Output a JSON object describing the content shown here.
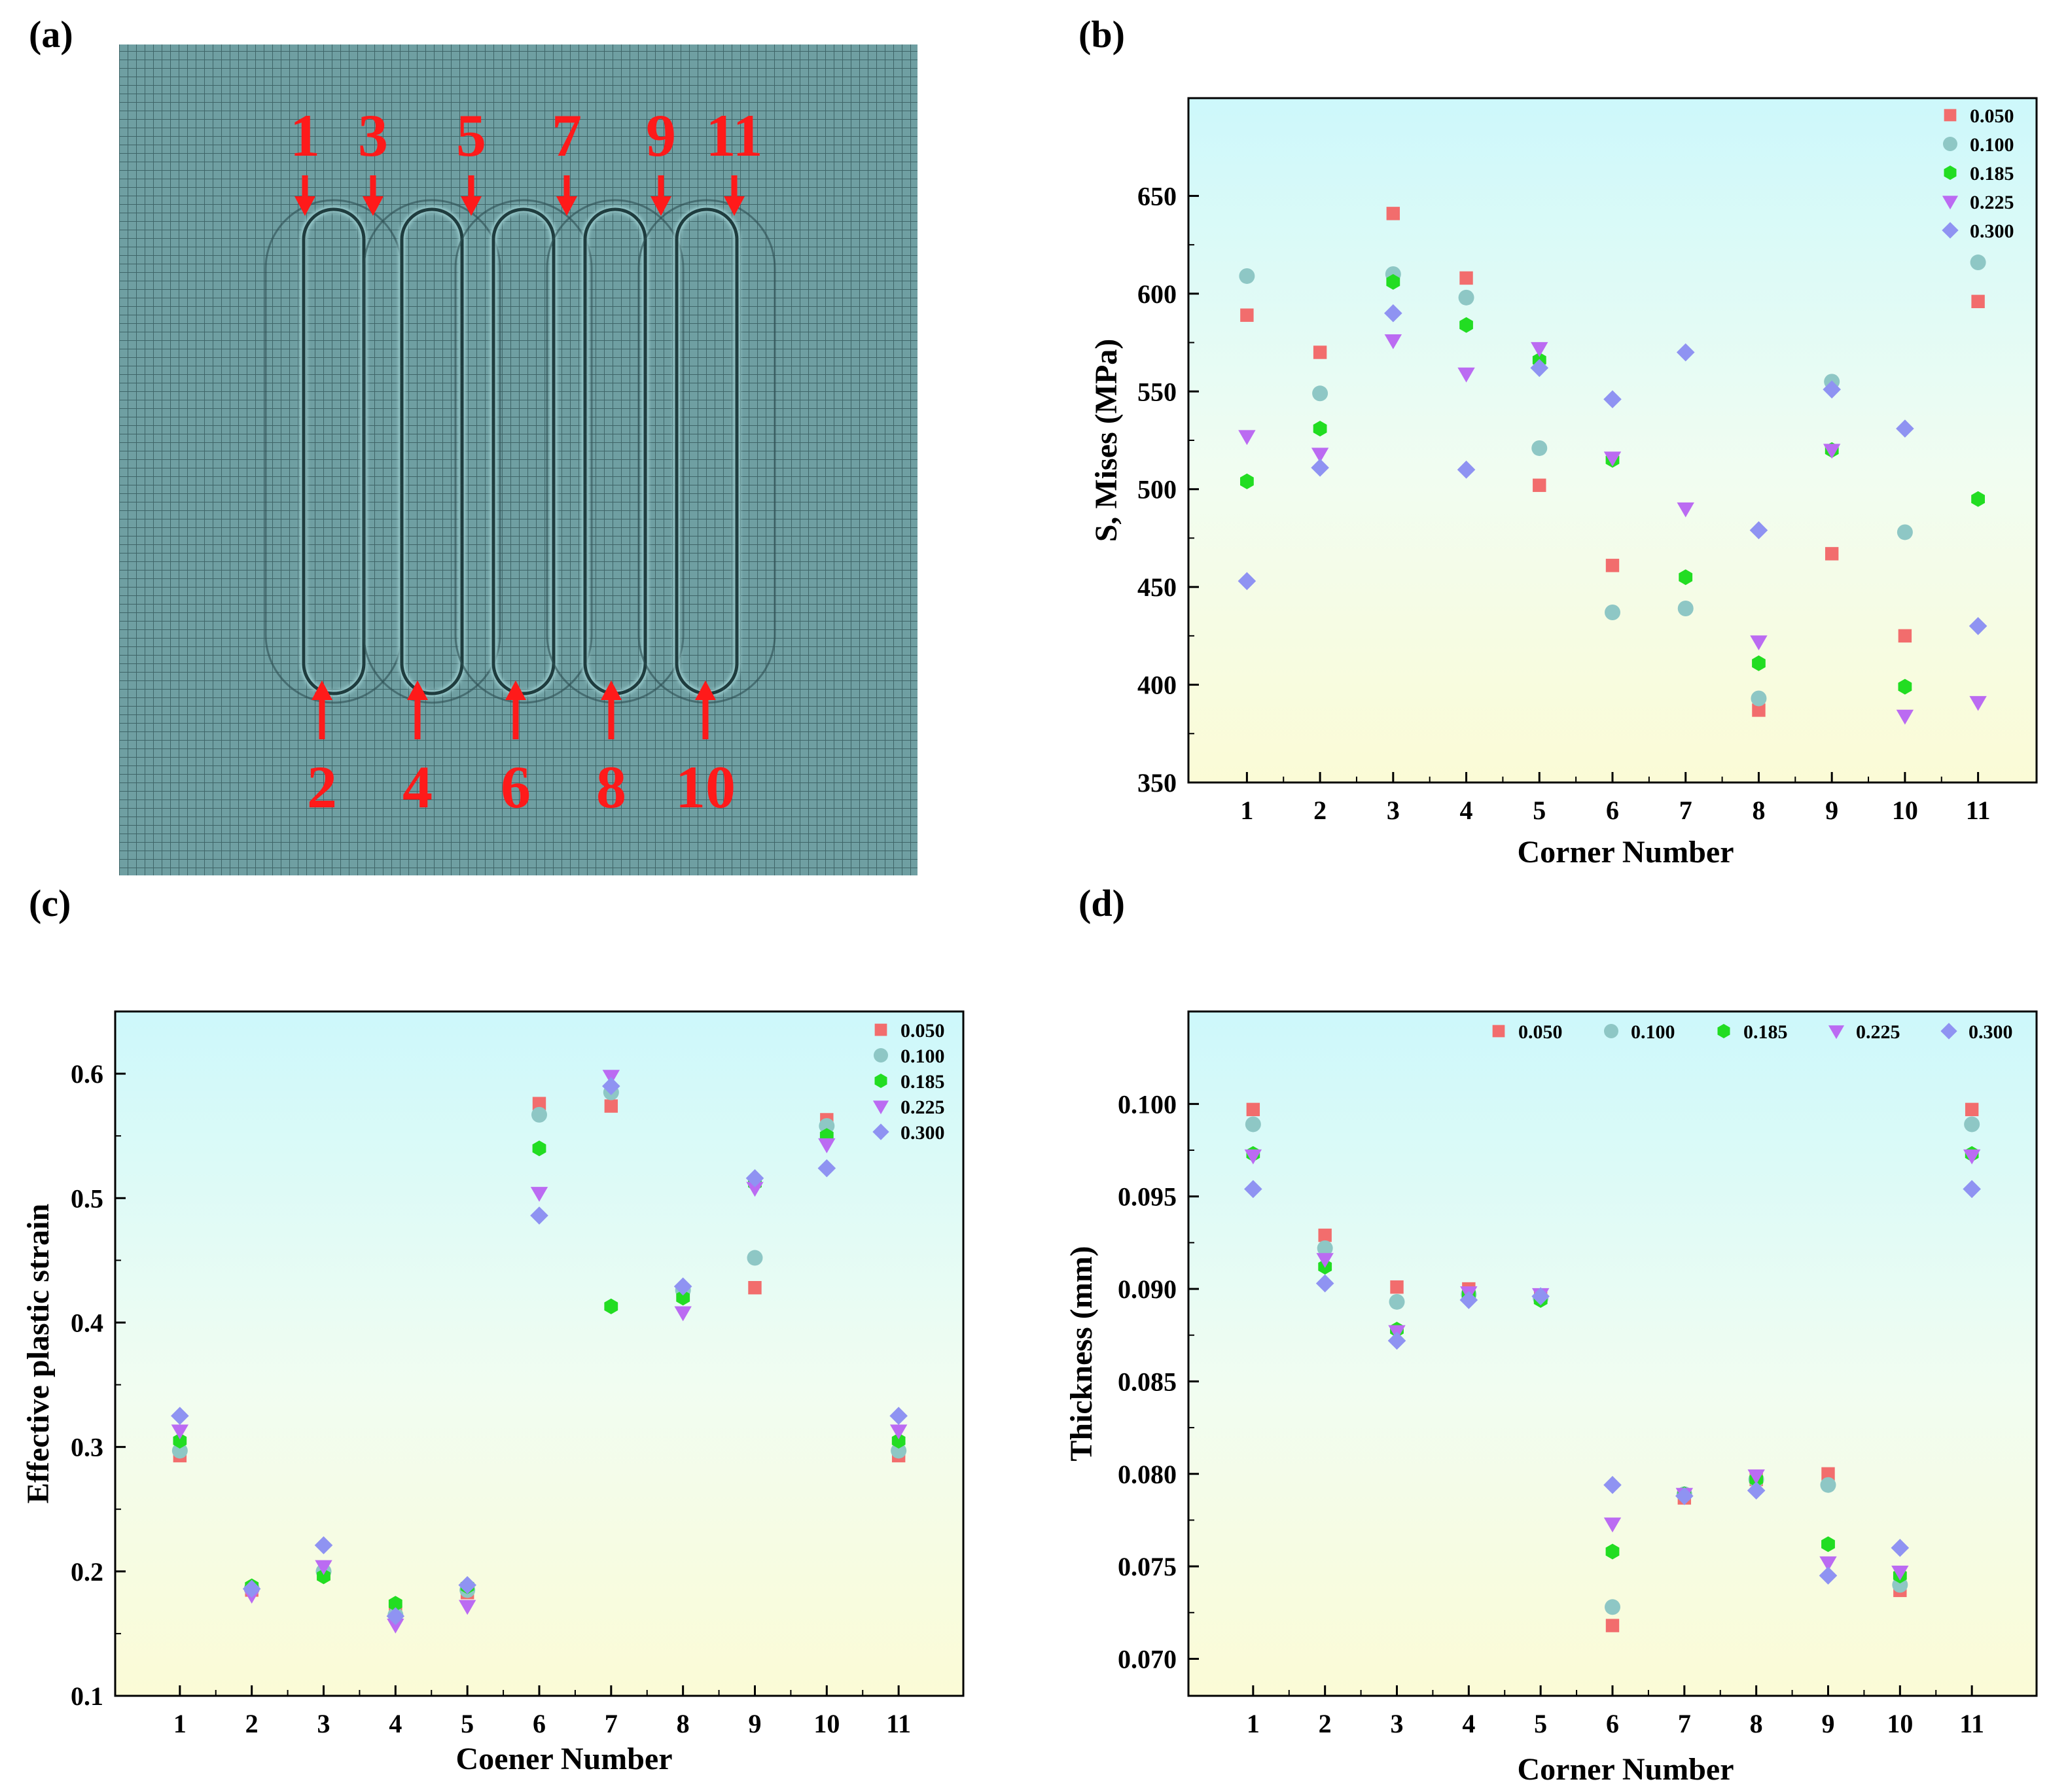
{
  "panel_labels": [
    "(a)",
    "(b)",
    "(c)",
    "(d)"
  ],
  "mesh": {
    "colors": {
      "mesh": "#5e8f92",
      "arrow": "#ff1a1a"
    },
    "top_labels": [
      "1",
      "3",
      "5",
      "7",
      "9",
      "11"
    ],
    "bottom_labels": [
      "2",
      "4",
      "6",
      "8",
      "10"
    ]
  },
  "series_styles": [
    {
      "name": "0.050",
      "color": "#f26d6d",
      "marker": "square"
    },
    {
      "name": "0.100",
      "color": "#8ec7c5",
      "marker": "circle"
    },
    {
      "name": "0.185",
      "color": "#22dd22",
      "marker": "hexagon"
    },
    {
      "name": "0.225",
      "color": "#bb6bf2",
      "marker": "triangle-down"
    },
    {
      "name": "0.300",
      "color": "#8f93f2",
      "marker": "diamond"
    }
  ],
  "chart_data": [
    {
      "id": "b",
      "type": "scatter",
      "xlabel": "Corner Number",
      "ylabel": "S, Mises (MPa)",
      "x": [
        1,
        2,
        3,
        4,
        5,
        6,
        7,
        8,
        9,
        10,
        11
      ],
      "xlim": [
        0.2,
        11.8
      ],
      "ylim": [
        350,
        700
      ],
      "yticks": [
        350,
        400,
        450,
        500,
        550,
        600,
        650
      ],
      "yticklabels": [
        "350",
        "400",
        "450",
        "500",
        "550",
        "600",
        "650"
      ],
      "legend": "top-right",
      "legend_layout": "vertical",
      "series": [
        {
          "name": "0.050",
          "values": [
            589,
            570,
            641,
            608,
            502,
            461,
            null,
            387,
            467,
            425,
            596
          ]
        },
        {
          "name": "0.100",
          "values": [
            609,
            549,
            610,
            598,
            521,
            437,
            439,
            393,
            555,
            478,
            616
          ]
        },
        {
          "name": "0.185",
          "values": [
            504,
            531,
            606,
            584,
            566,
            515,
            455,
            411,
            520,
            399,
            495
          ]
        },
        {
          "name": "0.225",
          "values": [
            527,
            518,
            576,
            559,
            572,
            516,
            490,
            422,
            520,
            384,
            391
          ]
        },
        {
          "name": "0.300",
          "values": [
            453,
            511,
            590,
            510,
            562,
            546,
            570,
            479,
            551,
            531,
            430
          ]
        }
      ]
    },
    {
      "id": "c",
      "type": "scatter",
      "xlabel": "Coener Number",
      "ylabel": "Effective plastic strain",
      "x": [
        1,
        2,
        3,
        4,
        5,
        6,
        7,
        8,
        9,
        10,
        11
      ],
      "xlim": [
        0.1,
        11.9
      ],
      "ylim": [
        0.1,
        0.65
      ],
      "yticks": [
        0.1,
        0.2,
        0.3,
        0.4,
        0.5,
        0.6
      ],
      "yticklabels": [
        "0.1",
        "0.2",
        "0.3",
        "0.4",
        "0.5",
        "0.6"
      ],
      "legend": "top-right",
      "legend_layout": "vertical",
      "series": [
        {
          "name": "0.050",
          "values": [
            0.293,
            0.185,
            0.198,
            0.168,
            0.183,
            0.576,
            0.574,
            0.425,
            0.428,
            0.563,
            0.293
          ]
        },
        {
          "name": "0.100",
          "values": [
            0.297,
            0.186,
            0.2,
            0.165,
            0.185,
            0.567,
            0.585,
            0.426,
            0.452,
            0.558,
            0.297
          ]
        },
        {
          "name": "0.185",
          "values": [
            0.305,
            0.188,
            0.196,
            0.174,
            0.188,
            0.54,
            0.413,
            0.42,
            0.512,
            0.55,
            0.305
          ]
        },
        {
          "name": "0.225",
          "values": [
            0.313,
            0.181,
            0.204,
            0.157,
            0.172,
            0.504,
            0.598,
            0.408,
            0.508,
            0.543,
            0.313
          ]
        },
        {
          "name": "0.300",
          "values": [
            0.325,
            0.186,
            0.221,
            0.164,
            0.189,
            0.486,
            0.59,
            0.429,
            0.516,
            0.524,
            0.325
          ]
        }
      ]
    },
    {
      "id": "d",
      "type": "scatter",
      "xlabel": "Corner Number",
      "ylabel": "Thickness (mm)",
      "x": [
        1,
        2,
        3,
        4,
        5,
        6,
        7,
        8,
        9,
        10,
        11
      ],
      "xlim": [
        0.1,
        11.9
      ],
      "ylim": [
        0.068,
        0.105
      ],
      "yticks": [
        0.07,
        0.075,
        0.08,
        0.085,
        0.09,
        0.095,
        0.1
      ],
      "yticklabels": [
        "0.070",
        "0.075",
        "0.080",
        "0.085",
        "0.090",
        "0.095",
        "0.100"
      ],
      "legend": "top-right",
      "legend_layout": "horizontal",
      "series": [
        {
          "name": "0.050",
          "values": [
            0.0997,
            0.0929,
            0.0901,
            0.09,
            0.0896,
            0.0718,
            0.0787,
            0.0797,
            0.08,
            0.0737,
            0.0997
          ]
        },
        {
          "name": "0.100",
          "values": [
            0.0989,
            0.0922,
            0.0893,
            0.0897,
            0.0895,
            0.0728,
            0.0789,
            0.0797,
            0.0794,
            0.074,
            0.0989
          ]
        },
        {
          "name": "0.185",
          "values": [
            0.0973,
            0.0912,
            0.0878,
            0.0897,
            0.0894,
            0.0758,
            0.0789,
            0.0797,
            0.0762,
            0.0745,
            0.0973
          ]
        },
        {
          "name": "0.225",
          "values": [
            0.0972,
            0.0916,
            0.0877,
            0.0898,
            0.0897,
            0.0773,
            0.0789,
            0.0799,
            0.0752,
            0.0747,
            0.0972
          ]
        },
        {
          "name": "0.300",
          "values": [
            0.0954,
            0.0903,
            0.0872,
            0.0894,
            0.0896,
            0.0794,
            0.0788,
            0.0791,
            0.0745,
            0.076,
            0.0954
          ]
        }
      ]
    }
  ]
}
